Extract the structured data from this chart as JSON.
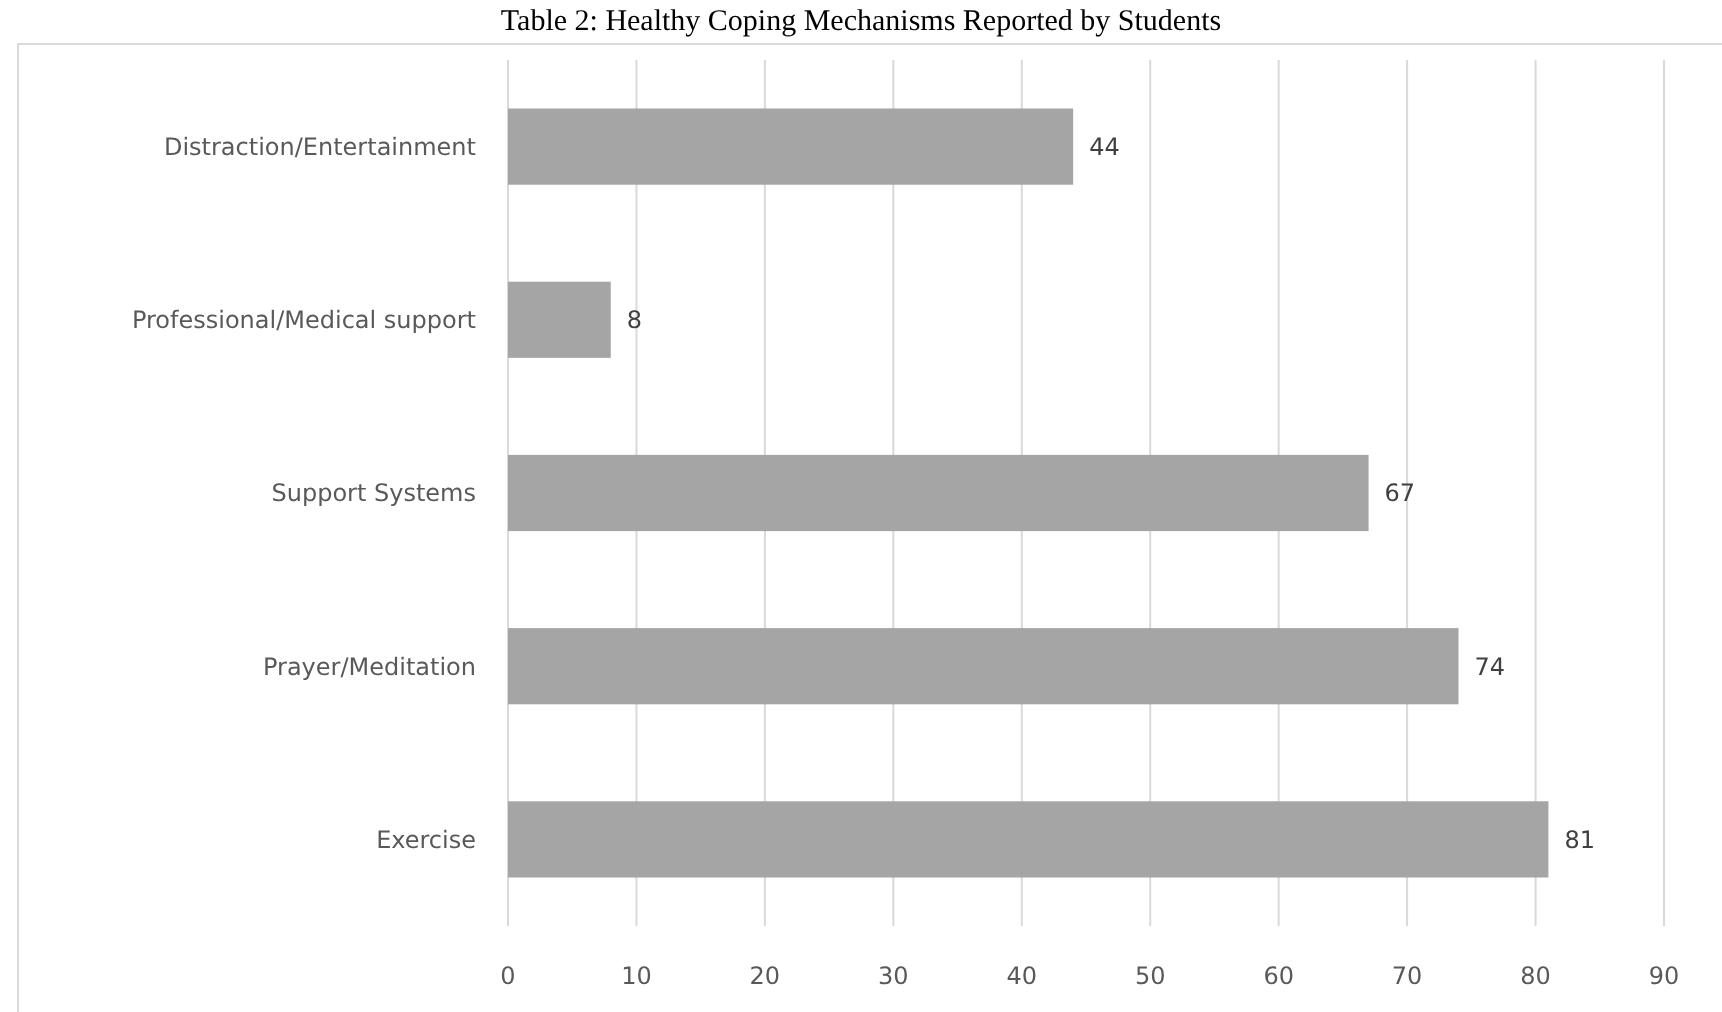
{
  "chart_data": {
    "type": "bar",
    "orientation": "horizontal",
    "title": "Table 2: Healthy Coping Mechanisms Reported by Students",
    "categories": [
      "Distraction/Entertainment",
      "Professional/Medical support",
      "Support Systems",
      "Prayer/Meditation",
      "Exercise"
    ],
    "values": [
      44,
      8,
      67,
      74,
      81
    ],
    "color": "#a5a5a5",
    "data_labels": true,
    "xlim": [
      0,
      90
    ],
    "xticks": [
      0,
      10,
      20,
      30,
      40,
      50,
      60,
      70,
      80,
      90
    ],
    "grid": "x"
  }
}
